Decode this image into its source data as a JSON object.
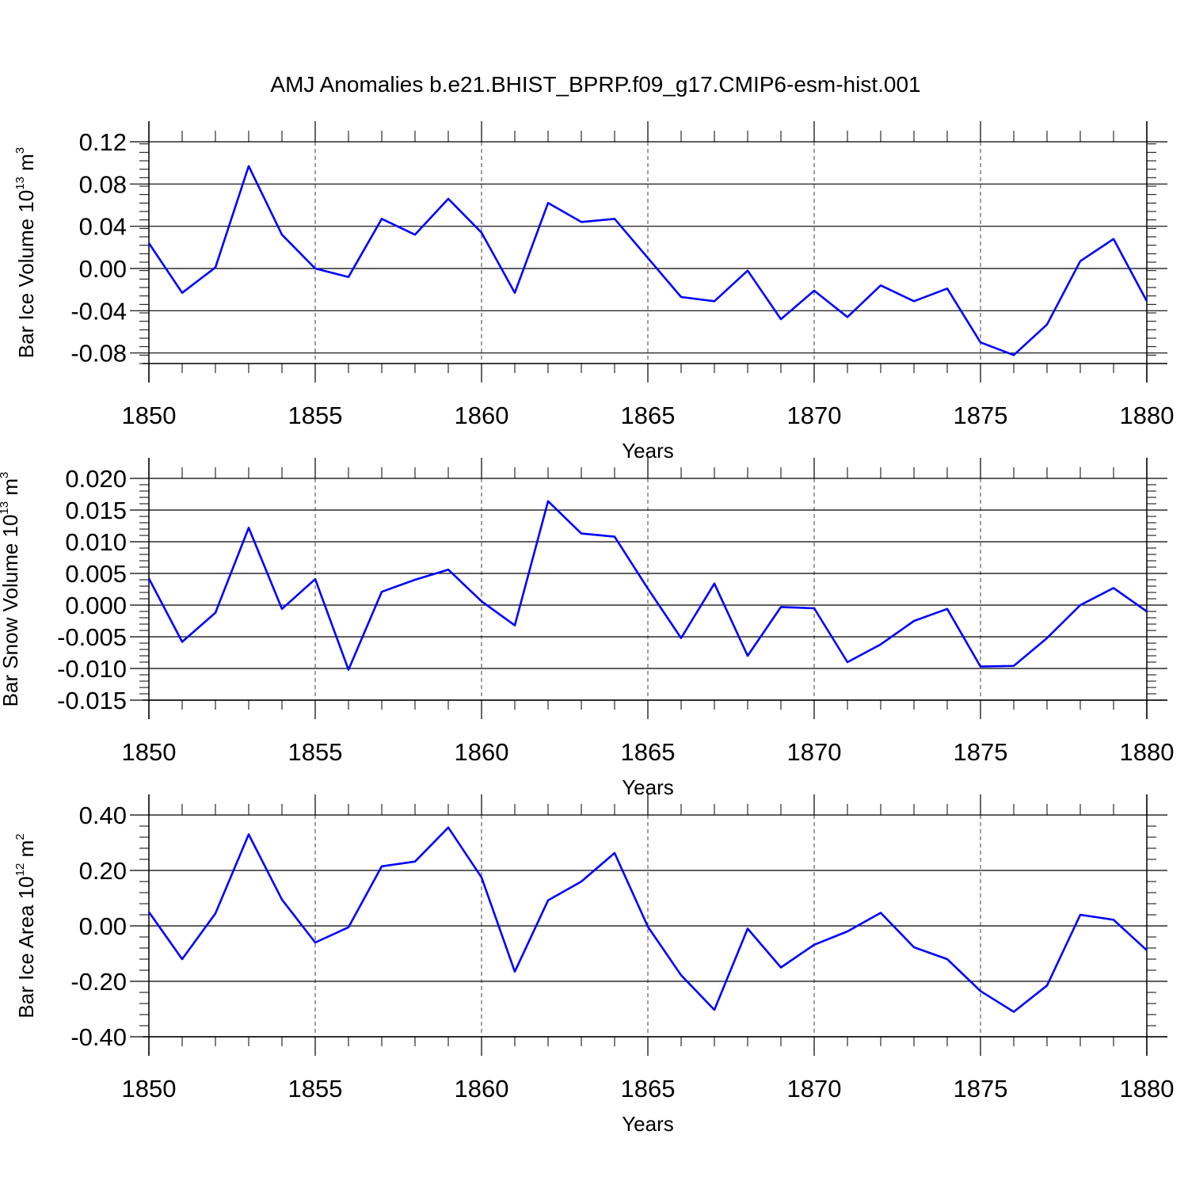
{
  "figure": {
    "title": "AMJ Anomalies b.e21.BHIST_BPRP.f09_g17.CMIP6-esm-hist.001"
  },
  "colors": {
    "line": "#0000ff",
    "axes": "#000000",
    "grid": "#000000"
  },
  "chart_data": [
    {
      "type": "line",
      "title": "",
      "xlabel": "Years",
      "ylabel": {
        "text": "Bar Ice Volume 10",
        "exponent": "13",
        "unit": " m",
        "unit_exponent": "3"
      },
      "xlim": [
        1850,
        1880
      ],
      "ylim": [
        -0.09,
        0.12
      ],
      "x_ticks": [
        "1850",
        "1855",
        "1860",
        "1865",
        "1870",
        "1875",
        "1880"
      ],
      "y_ticks": [
        0.12,
        0.08,
        0.04,
        0.0,
        -0.04,
        -0.08
      ],
      "y_tick_labels": [
        "0.12",
        "0.08",
        "0.04",
        "0.00",
        "-0.04",
        "-0.08"
      ],
      "y_minor_step": 0.008,
      "grid": "vertical dashed at major x ticks",
      "series": [
        {
          "x": [
            1850,
            1851,
            1852,
            1853,
            1854,
            1855,
            1856,
            1857,
            1858,
            1859,
            1860,
            1861,
            1862,
            1863,
            1864,
            1865,
            1866,
            1867,
            1868,
            1869,
            1870,
            1871,
            1872,
            1873,
            1874,
            1875,
            1876,
            1877,
            1878,
            1879,
            1880
          ],
          "values": [
            0.024,
            -0.023,
            0.001,
            0.097,
            0.032,
            0.0,
            -0.008,
            0.047,
            0.032,
            0.066,
            0.034,
            -0.023,
            0.062,
            0.044,
            0.047,
            0.01,
            -0.027,
            -0.031,
            -0.002,
            -0.048,
            -0.021,
            -0.046,
            -0.016,
            -0.031,
            -0.019,
            -0.07,
            -0.082,
            -0.053,
            0.007,
            0.028,
            -0.031
          ]
        }
      ]
    },
    {
      "type": "line",
      "title": "",
      "xlabel": "Years",
      "ylabel": {
        "text": "Bar Snow Volume 10",
        "exponent": "13",
        "unit": " m",
        "unit_exponent": "3"
      },
      "xlim": [
        1850,
        1880
      ],
      "ylim": [
        -0.015,
        0.02
      ],
      "x_ticks": [
        "1850",
        "1855",
        "1860",
        "1865",
        "1870",
        "1875",
        "1880"
      ],
      "y_ticks": [
        0.02,
        0.015,
        0.01,
        0.005,
        0.0,
        -0.005,
        -0.01,
        -0.015
      ],
      "y_tick_labels": [
        "0.020",
        "0.015",
        "0.010",
        "0.005",
        "0.000",
        "-0.005",
        "-0.010",
        "-0.015"
      ],
      "y_minor_step": 0.001,
      "grid": "vertical dashed at major x ticks",
      "series": [
        {
          "x": [
            1850,
            1851,
            1852,
            1853,
            1854,
            1855,
            1856,
            1857,
            1858,
            1859,
            1860,
            1861,
            1862,
            1863,
            1864,
            1865,
            1866,
            1867,
            1868,
            1869,
            1870,
            1871,
            1872,
            1873,
            1874,
            1875,
            1876,
            1877,
            1878,
            1879,
            1880
          ],
          "values": [
            0.0042,
            -0.0058,
            -0.0012,
            0.0122,
            -0.0006,
            0.0041,
            -0.0102,
            0.0021,
            0.004,
            0.0056,
            0.0006,
            -0.0032,
            0.0164,
            0.0113,
            0.0108,
            0.0026,
            -0.0052,
            0.0034,
            -0.008,
            -0.0003,
            -0.0005,
            -0.009,
            -0.0062,
            -0.0025,
            -0.0006,
            -0.0097,
            -0.0096,
            -0.0052,
            0.0,
            0.0027,
            -0.001
          ]
        }
      ]
    },
    {
      "type": "line",
      "title": "",
      "xlabel": "Years",
      "ylabel": {
        "text": "Bar Ice Area 10",
        "exponent": "12",
        "unit": " m",
        "unit_exponent": "2"
      },
      "xlim": [
        1850,
        1880
      ],
      "ylim": [
        -0.4,
        0.4
      ],
      "x_ticks": [
        "1850",
        "1855",
        "1860",
        "1865",
        "1870",
        "1875",
        "1880"
      ],
      "y_ticks": [
        0.4,
        0.2,
        0.0,
        -0.2,
        -0.4
      ],
      "y_tick_labels": [
        "0.40",
        "0.20",
        "0.00",
        "-0.20",
        "-0.40"
      ],
      "y_minor_step": 0.04,
      "grid": "vertical dashed at major x ticks",
      "series": [
        {
          "x": [
            1850,
            1851,
            1852,
            1853,
            1854,
            1855,
            1856,
            1857,
            1858,
            1859,
            1860,
            1861,
            1862,
            1863,
            1864,
            1865,
            1866,
            1867,
            1868,
            1869,
            1870,
            1871,
            1872,
            1873,
            1874,
            1875,
            1876,
            1877,
            1878,
            1879,
            1880
          ],
          "values": [
            0.05,
            -0.12,
            0.045,
            0.33,
            0.095,
            -0.06,
            -0.005,
            0.215,
            0.232,
            0.355,
            0.175,
            -0.165,
            0.092,
            0.16,
            0.263,
            -0.003,
            -0.178,
            -0.303,
            -0.01,
            -0.15,
            -0.068,
            -0.02,
            0.047,
            -0.077,
            -0.12,
            -0.235,
            -0.31,
            -0.215,
            0.04,
            0.022,
            -0.088
          ]
        }
      ]
    }
  ]
}
